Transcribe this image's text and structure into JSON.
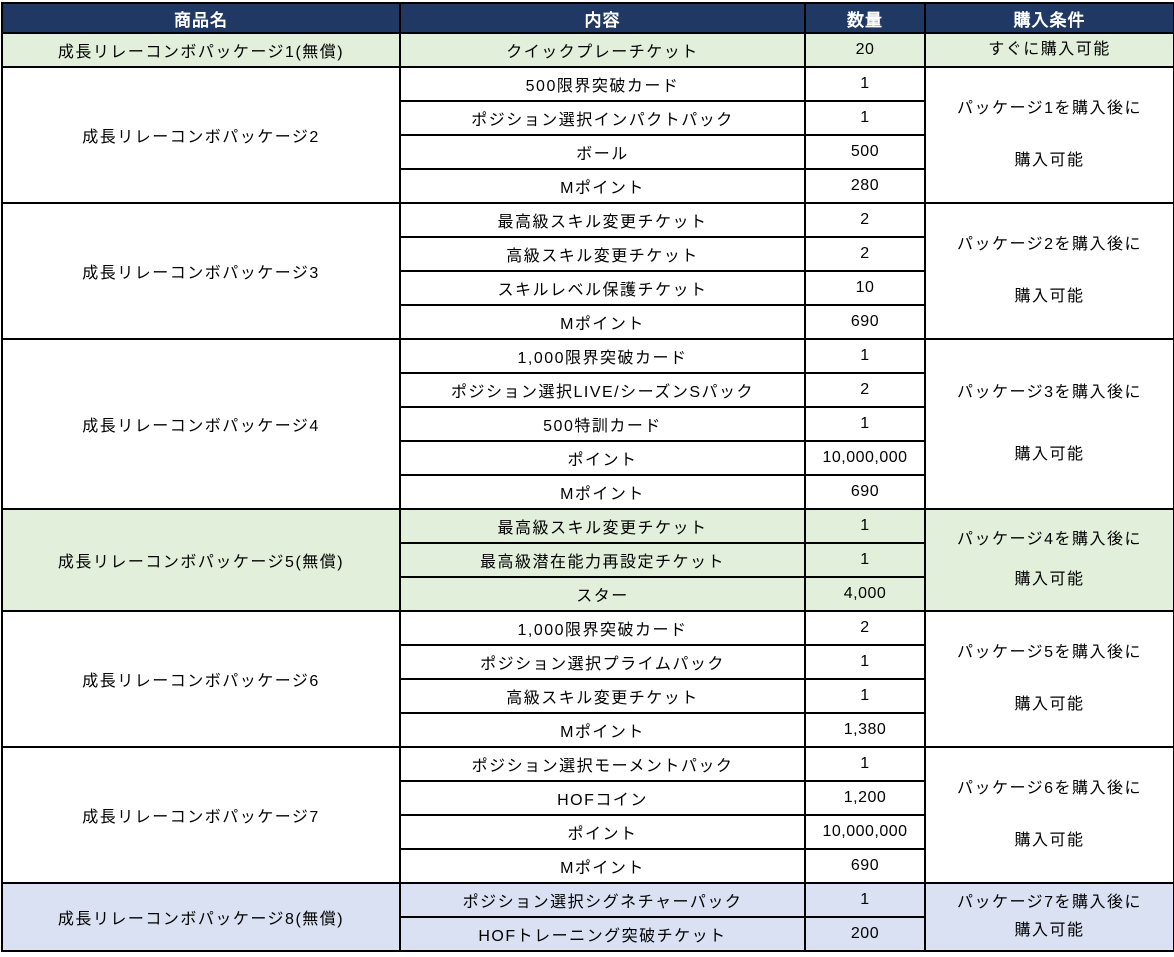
{
  "header": {
    "product": "商品名",
    "content": "内容",
    "quantity": "数量",
    "condition": "購入条件"
  },
  "colors": {
    "header_bg": "#1F3864",
    "header_text": "#FFFFFF",
    "highlight_green": "#E2EFDA",
    "highlight_blue": "#D9E1F2",
    "border": "#000000",
    "body_text": "#000000"
  },
  "packages": [
    {
      "name": "成長リレーコンボパッケージ1(無償)",
      "highlight": "green",
      "condition_lines": [
        "すぐに購入可能"
      ],
      "items": [
        {
          "label": "クイックプレーチケット",
          "qty": "20"
        }
      ]
    },
    {
      "name": "成長リレーコンボパッケージ2",
      "highlight": "none",
      "condition_lines": [
        "パッケージ1を購入後に",
        "購入可能"
      ],
      "items": [
        {
          "label": "500限界突破カード",
          "qty": "1"
        },
        {
          "label": "ポジション選択インパクトパック",
          "qty": "1"
        },
        {
          "label": "ボール",
          "qty": "500"
        },
        {
          "label": "Mポイント",
          "qty": "280"
        }
      ]
    },
    {
      "name": "成長リレーコンボパッケージ3",
      "highlight": "none",
      "condition_lines": [
        "パッケージ2を購入後に",
        "購入可能"
      ],
      "items": [
        {
          "label": "最高級スキル変更チケット",
          "qty": "2"
        },
        {
          "label": "高級スキル変更チケット",
          "qty": "2"
        },
        {
          "label": "スキルレベル保護チケット",
          "qty": "10"
        },
        {
          "label": "Mポイント",
          "qty": "690"
        }
      ]
    },
    {
      "name": "成長リレーコンボパッケージ4",
      "highlight": "none",
      "condition_lines": [
        "パッケージ3を購入後に",
        "購入可能"
      ],
      "items": [
        {
          "label": "1,000限界突破カード",
          "qty": "1"
        },
        {
          "label": "ポジション選択LIVE/シーズンSパック",
          "qty": "2"
        },
        {
          "label": "500特訓カード",
          "qty": "1"
        },
        {
          "label": "ポイント",
          "qty": "10,000,000"
        },
        {
          "label": "Mポイント",
          "qty": "690"
        }
      ]
    },
    {
      "name": "成長リレーコンボパッケージ5(無償)",
      "highlight": "green",
      "condition_lines": [
        "パッケージ4を購入後に",
        "購入可能"
      ],
      "items": [
        {
          "label": "最高級スキル変更チケット",
          "qty": "1"
        },
        {
          "label": "最高級潜在能力再設定チケット",
          "qty": "1"
        },
        {
          "label": "スター",
          "qty": "4,000"
        }
      ]
    },
    {
      "name": "成長リレーコンボパッケージ6",
      "highlight": "none",
      "condition_lines": [
        "パッケージ5を購入後に",
        "購入可能"
      ],
      "items": [
        {
          "label": "1,000限界突破カード",
          "qty": "2"
        },
        {
          "label": "ポジション選択プライムパック",
          "qty": "1"
        },
        {
          "label": "高級スキル変更チケット",
          "qty": "1"
        },
        {
          "label": "Mポイント",
          "qty": "1,380"
        }
      ]
    },
    {
      "name": "成長リレーコンボパッケージ7",
      "highlight": "none",
      "condition_lines": [
        "パッケージ6を購入後に",
        "購入可能"
      ],
      "items": [
        {
          "label": "ポジション選択モーメントパック",
          "qty": "1"
        },
        {
          "label": "HOFコイン",
          "qty": "1,200"
        },
        {
          "label": "ポイント",
          "qty": "10,000,000"
        },
        {
          "label": "Mポイント",
          "qty": "690"
        }
      ]
    },
    {
      "name": "成長リレーコンボパッケージ8(無償)",
      "highlight": "blue",
      "condition_lines": [
        "パッケージ7を購入後に",
        "購入可能"
      ],
      "items": [
        {
          "label": "ポジション選択シグネチャーパック",
          "qty": "1"
        },
        {
          "label": "HOFトレーニング突破チケット",
          "qty": "200"
        }
      ]
    }
  ]
}
